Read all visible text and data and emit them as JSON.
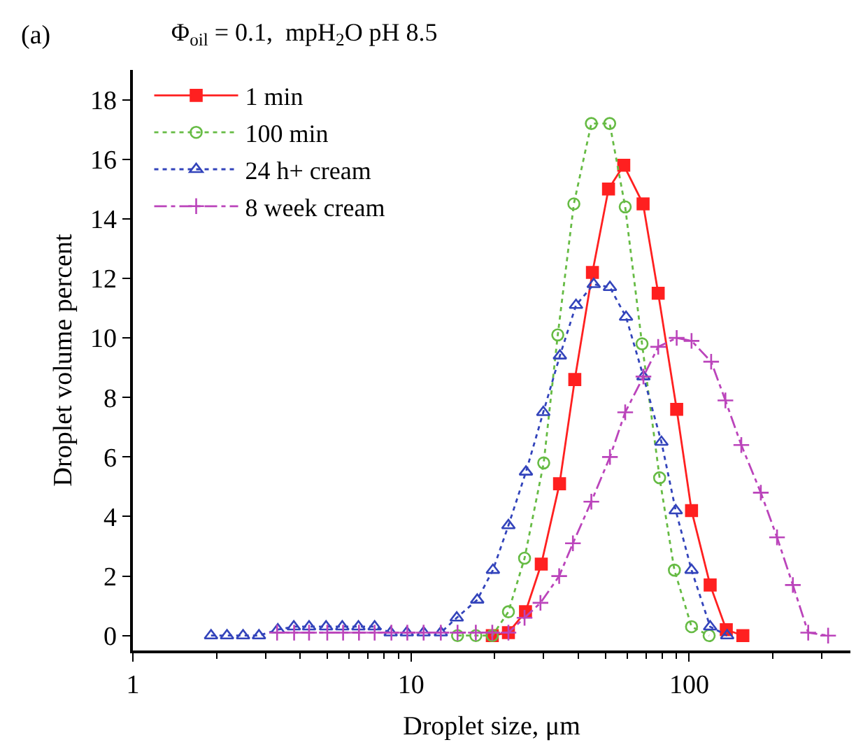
{
  "chart_data": {
    "type": "line",
    "title": "Φ$_{oil}$ = 0.1,  mpH$_{2}$O pH 8.5",
    "xlabel": "Droplet size, μm",
    "ylabel": "Droplet volume percent",
    "annotations": [
      "(a)"
    ],
    "log": "x",
    "xlim": [
      1,
      380
    ],
    "xticks": [
      1,
      10,
      100
    ],
    "ylim": [
      -0.5,
      19
    ],
    "yticks": [
      0,
      2,
      4,
      6,
      8,
      10,
      12,
      14,
      16,
      18
    ],
    "legend": "top left",
    "series": [
      {
        "name": "1 min",
        "color": "#ff2020",
        "marker": "square",
        "line_style": "solid",
        "x": [
          19.6,
          22.4,
          25.8,
          29.4,
          34.2,
          38.8,
          44.9,
          51.3,
          58.2,
          68.3,
          77.4,
          90.2,
          102,
          119,
          136,
          156
        ],
        "values": [
          0,
          0.1,
          0.8,
          2.4,
          5.1,
          8.6,
          12.2,
          15.0,
          15.8,
          14.5,
          11.5,
          7.6,
          4.2,
          1.7,
          0.2,
          0
        ]
      },
      {
        "name": "100 min",
        "color": "#66bb44",
        "marker": "circle",
        "line_style": "dotted",
        "x": [
          14.7,
          17.1,
          19.6,
          22.4,
          25.6,
          30.0,
          33.7,
          38.5,
          44.5,
          51.8,
          58.9,
          67.7,
          78.3,
          88.5,
          102,
          118
        ],
        "values": [
          0,
          0,
          0,
          0.8,
          2.6,
          5.8,
          10.1,
          14.5,
          17.2,
          17.2,
          14.4,
          9.8,
          5.3,
          2.2,
          0.3,
          0
        ]
      },
      {
        "name": "24 h+ cream",
        "color": "#3344bb",
        "marker": "triangle",
        "line_style": "dotted",
        "x": [
          1.91,
          2.18,
          2.49,
          2.84,
          3.32,
          3.79,
          4.3,
          4.95,
          5.66,
          6.47,
          7.4,
          8.45,
          9.66,
          11.1,
          12.8,
          14.6,
          17.3,
          19.7,
          22.4,
          25.9,
          29.9,
          34.3,
          39.2,
          45.4,
          51.9,
          59.3,
          68.5,
          79.5,
          89.5,
          102,
          119,
          137
        ],
        "values": [
          0,
          0,
          0,
          0,
          0.2,
          0.3,
          0.3,
          0.3,
          0.3,
          0.3,
          0.3,
          0.1,
          0.1,
          0.1,
          0.1,
          0.6,
          1.2,
          2.2,
          3.7,
          5.5,
          7.5,
          9.4,
          11.1,
          11.8,
          11.7,
          10.7,
          8.7,
          6.5,
          4.2,
          2.2,
          0.3,
          0
        ]
      },
      {
        "name": "8 week cream",
        "color": "#bb44bb",
        "marker": "cross",
        "line_style": "dashdot",
        "x": [
          3.3,
          3.8,
          4.3,
          5.0,
          5.7,
          6.5,
          7.4,
          8.5,
          9.7,
          11.1,
          12.8,
          14.7,
          17.1,
          19.6,
          22.4,
          25.6,
          29.2,
          34.1,
          38.2,
          44.5,
          51.9,
          58.9,
          68.5,
          77.4,
          90.2,
          102,
          120,
          135,
          154,
          181,
          207,
          236,
          268,
          316
        ],
        "values": [
          0.1,
          0.1,
          0.1,
          0.1,
          0.1,
          0.1,
          0.1,
          0.1,
          0.1,
          0.1,
          0.1,
          0.1,
          0.1,
          0.1,
          0.1,
          0.6,
          1.1,
          2.0,
          3.1,
          4.5,
          6.0,
          7.5,
          8.7,
          9.7,
          10.0,
          9.9,
          9.2,
          7.9,
          6.4,
          4.8,
          3.3,
          1.7,
          0.1,
          0
        ]
      }
    ]
  }
}
